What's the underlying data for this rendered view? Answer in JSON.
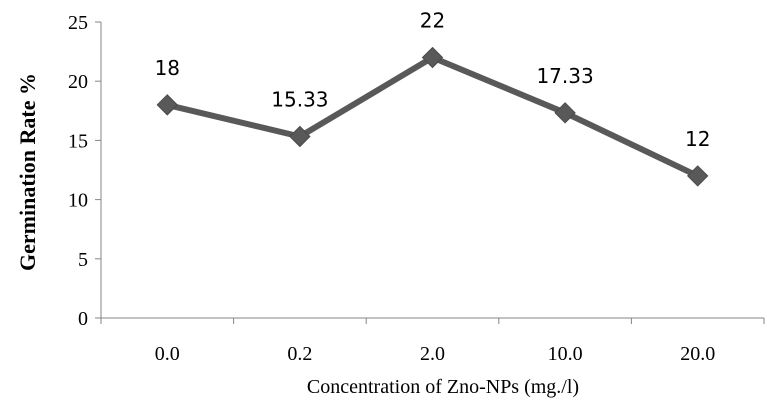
{
  "chart_data": {
    "type": "line",
    "categories": [
      "0.0",
      "0.2",
      "2.0",
      "10.0",
      "20.0"
    ],
    "series": [
      {
        "values": [
          18,
          15.33,
          22,
          17.33,
          12
        ],
        "data_labels": [
          "18",
          "15.33",
          "22",
          "17.33",
          "12"
        ]
      }
    ],
    "xlabel": "Concentration of Zno-NPs (mg./l)",
    "ylabel": "Germination Rate %",
    "ylim": [
      0,
      25
    ],
    "yticks": [
      "0",
      "5",
      "10",
      "15",
      "20",
      "25"
    ],
    "grid": false,
    "legend": "none",
    "marker": "diamond",
    "colors": {
      "line": "#595959",
      "marker": "#595959",
      "axis": "#868686"
    }
  }
}
